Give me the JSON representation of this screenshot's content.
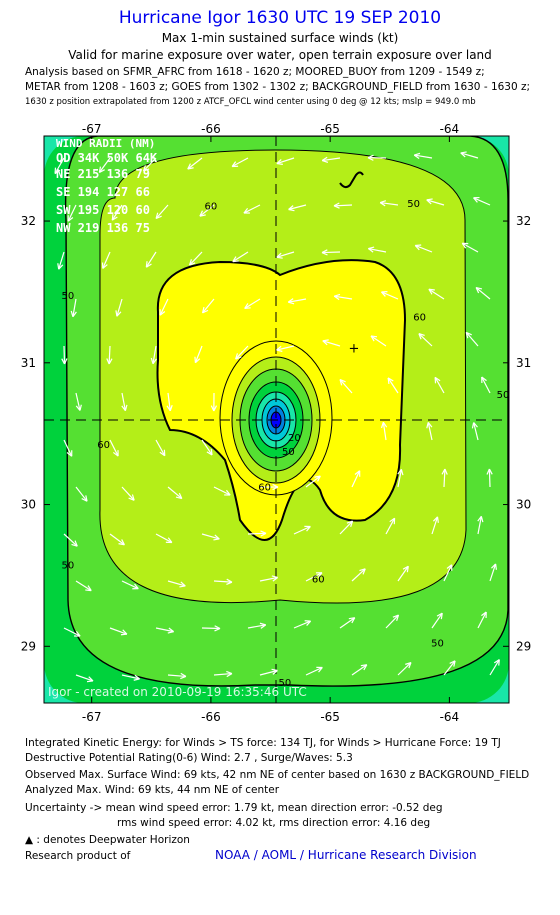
{
  "header": {
    "title": "Hurricane Igor 1630 UTC 19 SEP 2010",
    "subtitle1": "Max 1-min sustained surface winds (kt)",
    "subtitle2": "Valid for marine exposure over water, open terrain exposure over land",
    "analysis1": "Analysis based on SFMR_AFRC from 1618 - 1620 z; MOORED_BUOY from 1209 - 1549 z;",
    "analysis2": "METAR from 1208 - 1603 z; GOES from 1302 - 1302 z; BACKGROUND_FIELD from 1630 - 1630 z;",
    "analysis3": "1630 z position extrapolated from 1200 z ATCF_OFCL wind center using 0 deg @ 12 kts; mslp = 949.0 mb"
  },
  "chart_data": {
    "type": "contour",
    "x_ticks": [
      -67,
      -66,
      -65,
      -64
    ],
    "y_ticks": [
      29,
      30,
      31,
      32
    ],
    "xlim": [
      -67.4,
      -63.5
    ],
    "ylim": [
      28.6,
      32.6
    ],
    "center": {
      "lon": -65.38,
      "lat": 30.6
    },
    "contour_labels": [
      {
        "text": "50",
        "lon": -64.3,
        "lat": 32.1
      },
      {
        "text": "60",
        "lon": -66.0,
        "lat": 32.08
      },
      {
        "text": "50",
        "lon": -67.2,
        "lat": 31.45
      },
      {
        "text": "60",
        "lon": -64.25,
        "lat": 31.3
      },
      {
        "text": "60",
        "lon": -66.9,
        "lat": 30.4
      },
      {
        "text": "20",
        "lon": -65.3,
        "lat": 30.45
      },
      {
        "text": "50",
        "lon": -65.35,
        "lat": 30.35
      },
      {
        "text": "60",
        "lon": -65.55,
        "lat": 30.1
      },
      {
        "text": "50",
        "lon": -67.2,
        "lat": 29.55
      },
      {
        "text": "60",
        "lon": -65.1,
        "lat": 29.45
      },
      {
        "text": "50",
        "lon": -65.38,
        "lat": 28.72
      },
      {
        "text": "50",
        "lon": -64.1,
        "lat": 29.0
      },
      {
        "text": "50",
        "lon": -63.55,
        "lat": 30.75
      }
    ],
    "wind_radii": {
      "title": "WIND RADII (NM)",
      "header": "QD 34K 50K 64K",
      "rows": [
        "NE 215 136  79",
        "SE 194 127  66",
        "SW 195 120  60",
        "NW 219 136  75"
      ]
    },
    "plus_marker": {
      "lon": -64.8,
      "lat": 31.1
    },
    "watermark": "Igor - created on 2010-09-19 16:35:46 UTC"
  },
  "footer": {
    "ike": "Integrated Kinetic Energy:  for Winds > TS force: 134 TJ,  for Winds > Hurricane Force: 19 TJ",
    "dpr": "Destructive Potential Rating(0-6)   Wind: 2.7 , Surge/Waves: 5.3",
    "obs": "Observed Max. Surface Wind: 69 kts, 42 nm NE of center based on 1630 z BACKGROUND_FIELD",
    "analyzed": "Analyzed Max. Wind: 69 kts, 44 nm NE of center",
    "unc1": "Uncertainty -> mean wind speed error: 1.79 kt,   mean direction error:  -0.52 deg",
    "unc2": "rms wind speed error: 4.02 kt,   rms direction error: 4.16 deg",
    "dwh": ": denotes Deepwater Horizon",
    "research": "Research product of",
    "org": "NOAA / AOML / Hurricane Research Division"
  },
  "colors": {
    "band_outer": "#19e6a8",
    "band_40_50": "#00d23c",
    "band_50_60": "#55e032",
    "band_60_65": "#b4ee18",
    "band_core": "#ffff00",
    "title": "#0000ee",
    "link": "#0000cc"
  }
}
